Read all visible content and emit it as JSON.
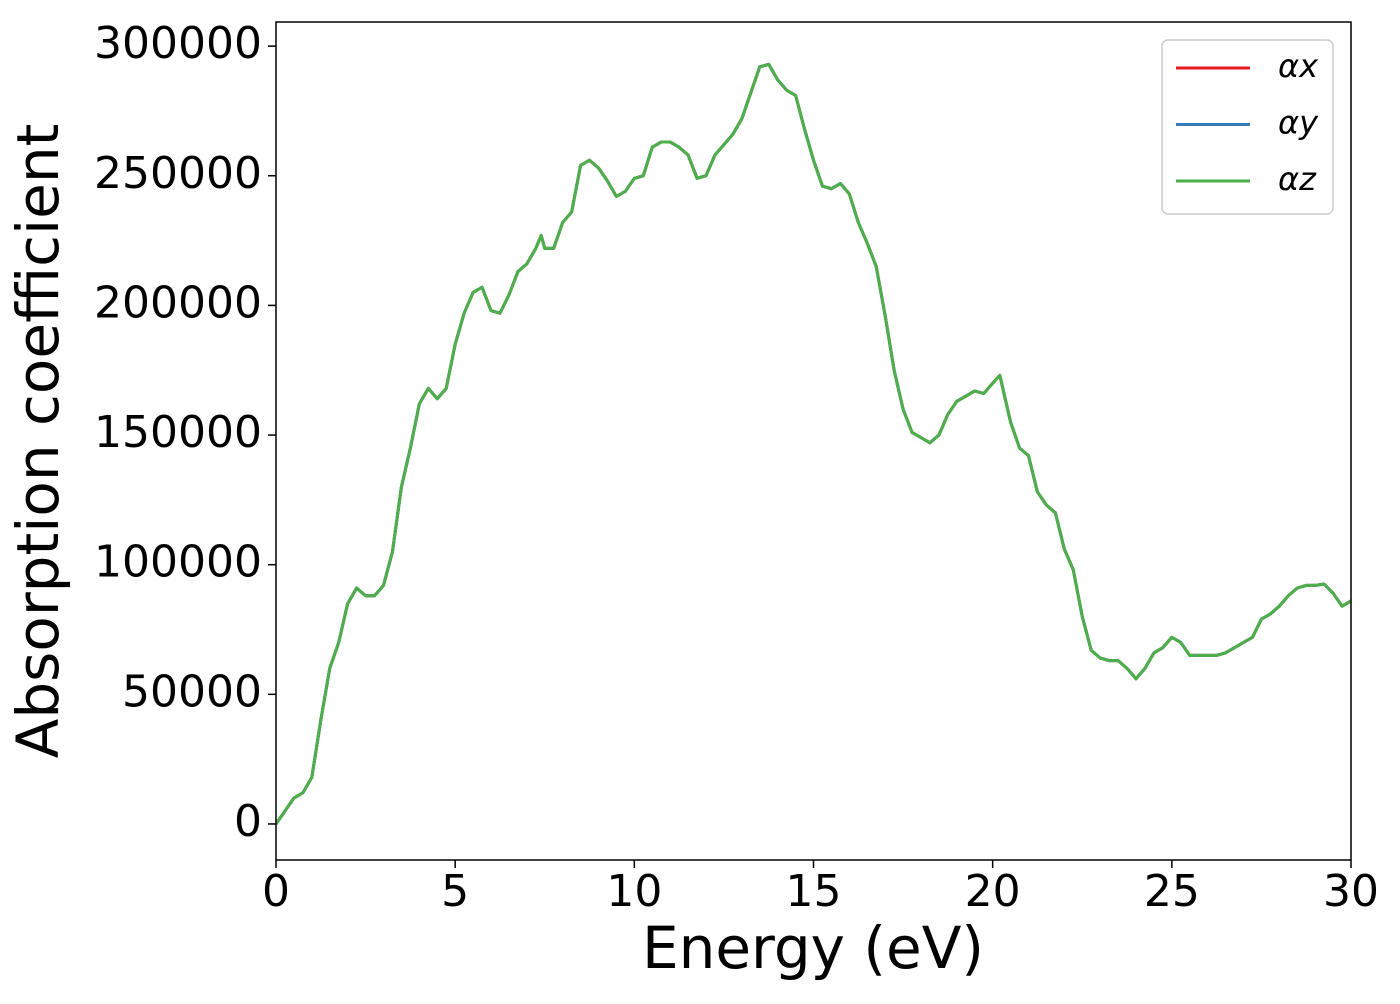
{
  "chart_data": {
    "type": "line",
    "xlabel": "Energy (eV)",
    "ylabel": "Absorption coefficient",
    "x": [
      0,
      0.25,
      0.5,
      0.75,
      1,
      1.25,
      1.5,
      1.75,
      2,
      2.25,
      2.5,
      2.75,
      3,
      3.25,
      3.5,
      3.75,
      4,
      4.25,
      4.5,
      4.75,
      5,
      5.25,
      5.5,
      5.75,
      6,
      6.25,
      6.5,
      6.75,
      7,
      7.25,
      7.4,
      7.5,
      7.75,
      8,
      8.25,
      8.5,
      8.75,
      9,
      9.25,
      9.5,
      9.75,
      10,
      10.25,
      10.5,
      10.75,
      11,
      11.25,
      11.5,
      11.75,
      12,
      12.25,
      12.5,
      12.75,
      13,
      13.25,
      13.5,
      13.75,
      14,
      14.25,
      14.5,
      14.75,
      15,
      15.25,
      15.5,
      15.75,
      16,
      16.25,
      16.5,
      16.75,
      17,
      17.25,
      17.5,
      17.75,
      18,
      18.25,
      18.5,
      18.75,
      19,
      19.25,
      19.5,
      19.75,
      20,
      20.2,
      20.5,
      20.75,
      21,
      21.25,
      21.5,
      21.75,
      22,
      22.25,
      22.5,
      22.75,
      23,
      23.25,
      23.5,
      23.75,
      24,
      24.25,
      24.5,
      24.75,
      25,
      25.25,
      25.5,
      25.75,
      26,
      26.25,
      26.5,
      26.75,
      27,
      27.25,
      27.5,
      27.75,
      28,
      28.25,
      28.5,
      28.75,
      29,
      29.25,
      29.5,
      29.75,
      30
    ],
    "series": [
      {
        "name": "αx",
        "color": "#e41a1c",
        "values": [
          0,
          5000,
          10000,
          12000,
          18000,
          40000,
          60000,
          70000,
          85000,
          91000,
          88000,
          88000,
          92000,
          105000,
          130000,
          145000,
          162000,
          168000,
          164000,
          168000,
          185000,
          197000,
          205000,
          207000,
          198000,
          197000,
          204000,
          213000,
          216000,
          222000,
          227000,
          222000,
          222000,
          232000,
          236000,
          254000,
          256000,
          253000,
          248000,
          242000,
          244000,
          249000,
          250000,
          261000,
          263000,
          263000,
          261000,
          258000,
          249000,
          250000,
          258000,
          262000,
          266000,
          272000,
          282000,
          292000,
          293000,
          287000,
          283000,
          281000,
          268000,
          256000,
          246000,
          245000,
          247000,
          243000,
          232000,
          224000,
          215000,
          196000,
          175000,
          160000,
          151000,
          149000,
          147000,
          150000,
          158000,
          163000,
          165000,
          167000,
          166000,
          170000,
          173000,
          155000,
          145000,
          142000,
          128000,
          123000,
          120000,
          106000,
          98000,
          80000,
          67000,
          64000,
          63000,
          63000,
          60000,
          56000,
          60000,
          66000,
          68000,
          72000,
          70000,
          65000,
          65000,
          65000,
          65000,
          66000,
          68000,
          70000,
          72000,
          79000,
          81000,
          84000,
          88000,
          91000,
          92000,
          92000,
          92500,
          89000,
          84000,
          86000
        ]
      },
      {
        "name": "αy",
        "color": "#377eb8",
        "values": [
          0,
          5000,
          10000,
          12000,
          18000,
          40000,
          60000,
          70000,
          85000,
          91000,
          88000,
          88000,
          92000,
          105000,
          130000,
          145000,
          162000,
          168000,
          164000,
          168000,
          185000,
          197000,
          205000,
          207000,
          198000,
          197000,
          204000,
          213000,
          216000,
          222000,
          227000,
          222000,
          222000,
          232000,
          236000,
          254000,
          256000,
          253000,
          248000,
          242000,
          244000,
          249000,
          250000,
          261000,
          263000,
          263000,
          261000,
          258000,
          249000,
          250000,
          258000,
          262000,
          266000,
          272000,
          282000,
          292000,
          293000,
          287000,
          283000,
          281000,
          268000,
          256000,
          246000,
          245000,
          247000,
          243000,
          232000,
          224000,
          215000,
          196000,
          175000,
          160000,
          151000,
          149000,
          147000,
          150000,
          158000,
          163000,
          165000,
          167000,
          166000,
          170000,
          173000,
          155000,
          145000,
          142000,
          128000,
          123000,
          120000,
          106000,
          98000,
          80000,
          67000,
          64000,
          63000,
          63000,
          60000,
          56000,
          60000,
          66000,
          68000,
          72000,
          70000,
          65000,
          65000,
          65000,
          65000,
          66000,
          68000,
          70000,
          72000,
          79000,
          81000,
          84000,
          88000,
          91000,
          92000,
          92000,
          92500,
          89000,
          84000,
          86000
        ]
      },
      {
        "name": "αz",
        "color": "#4daf4a",
        "values": [
          0,
          5000,
          10000,
          12000,
          18000,
          40000,
          60000,
          70000,
          85000,
          91000,
          88000,
          88000,
          92000,
          105000,
          130000,
          145000,
          162000,
          168000,
          164000,
          168000,
          185000,
          197000,
          205000,
          207000,
          198000,
          197000,
          204000,
          213000,
          216000,
          222000,
          227000,
          222000,
          222000,
          232000,
          236000,
          254000,
          256000,
          253000,
          248000,
          242000,
          244000,
          249000,
          250000,
          261000,
          263000,
          263000,
          261000,
          258000,
          249000,
          250000,
          258000,
          262000,
          266000,
          272000,
          282000,
          292000,
          293000,
          287000,
          283000,
          281000,
          268000,
          256000,
          246000,
          245000,
          247000,
          243000,
          232000,
          224000,
          215000,
          196000,
          175000,
          160000,
          151000,
          149000,
          147000,
          150000,
          158000,
          163000,
          165000,
          167000,
          166000,
          170000,
          173000,
          155000,
          145000,
          142000,
          128000,
          123000,
          120000,
          106000,
          98000,
          80000,
          67000,
          64000,
          63000,
          63000,
          60000,
          56000,
          60000,
          66000,
          68000,
          72000,
          70000,
          65000,
          65000,
          65000,
          65000,
          66000,
          68000,
          70000,
          72000,
          79000,
          81000,
          84000,
          88000,
          91000,
          92000,
          92000,
          92500,
          89000,
          84000,
          86000
        ]
      }
    ],
    "xlim": [
      0,
      30
    ],
    "xticks": [
      0,
      5,
      10,
      15,
      20,
      25,
      30
    ],
    "ylim": [
      -13900,
      309300
    ],
    "yticks": [
      0,
      50000,
      100000,
      150000,
      200000,
      250000,
      300000
    ],
    "grid": false,
    "legend": "upper right"
  }
}
